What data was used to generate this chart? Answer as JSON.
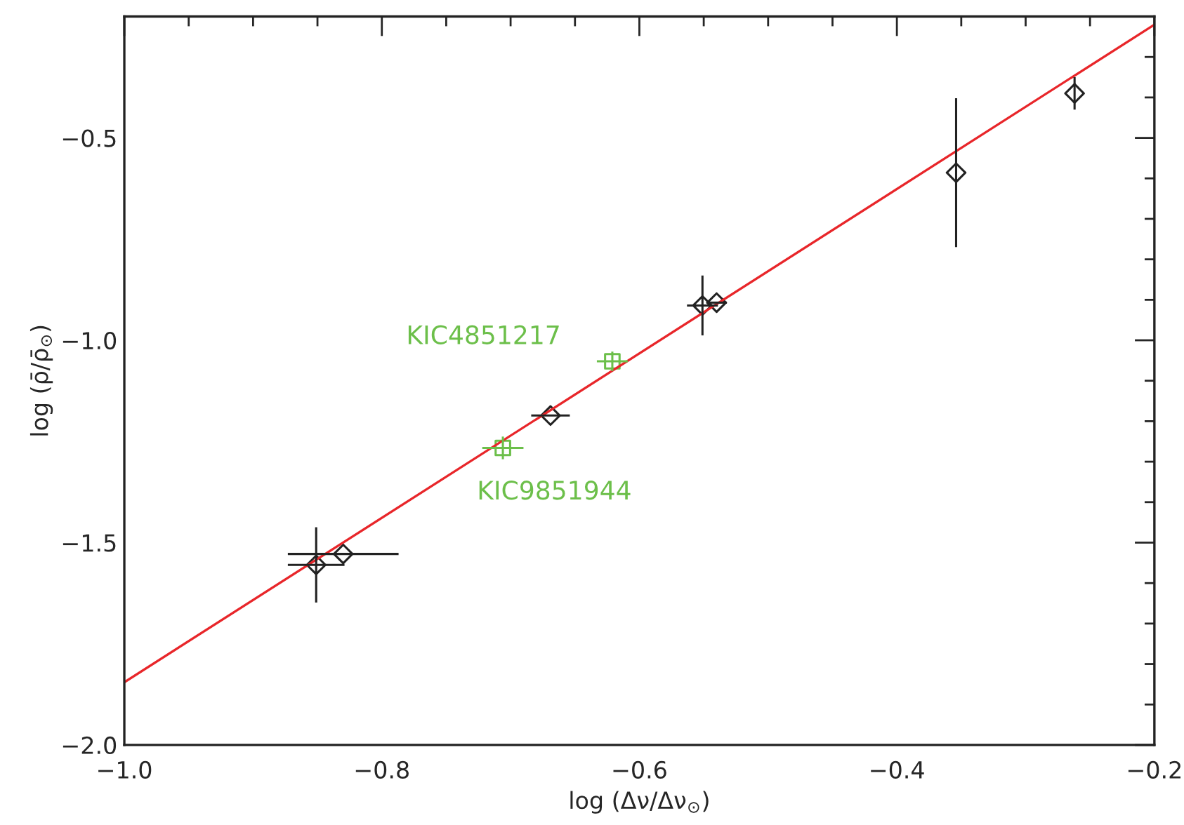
{
  "chart_data": {
    "type": "scatter",
    "xlabel": "log (Δν/Δν$_{⊙}$)",
    "ylabel": "log (ρ̄/ρ̄$_{⊙}$)",
    "xlim": [
      -1.0,
      -0.2
    ],
    "ylim": [
      -2.0,
      -0.2
    ],
    "xticks": [
      {
        "value": -1.0,
        "label": "−1.0"
      },
      {
        "value": -0.95,
        "label": null
      },
      {
        "value": -0.9,
        "label": null
      },
      {
        "value": -0.85,
        "label": null
      },
      {
        "value": -0.8,
        "label": "−0.8"
      },
      {
        "value": -0.75,
        "label": null
      },
      {
        "value": -0.7,
        "label": null
      },
      {
        "value": -0.65,
        "label": null
      },
      {
        "value": -0.6,
        "label": "−0.6"
      },
      {
        "value": -0.55,
        "label": null
      },
      {
        "value": -0.5,
        "label": null
      },
      {
        "value": -0.45,
        "label": null
      },
      {
        "value": -0.4,
        "label": "−0.4"
      },
      {
        "value": -0.35,
        "label": null
      },
      {
        "value": -0.3,
        "label": null
      },
      {
        "value": -0.25,
        "label": null
      },
      {
        "value": -0.2,
        "label": "−0.2"
      }
    ],
    "yticks": [
      {
        "value": -2.0,
        "label": "−2.0"
      },
      {
        "value": -1.9,
        "label": null
      },
      {
        "value": -1.8,
        "label": null
      },
      {
        "value": -1.7,
        "label": null
      },
      {
        "value": -1.6,
        "label": null
      },
      {
        "value": -1.5,
        "label": "−1.5"
      },
      {
        "value": -1.4,
        "label": null
      },
      {
        "value": -1.3,
        "label": null
      },
      {
        "value": -1.2,
        "label": null
      },
      {
        "value": -1.1,
        "label": null
      },
      {
        "value": -1.0,
        "label": "−1.0"
      },
      {
        "value": -0.9,
        "label": null
      },
      {
        "value": -0.8,
        "label": null
      },
      {
        "value": -0.7,
        "label": null
      },
      {
        "value": -0.6,
        "label": null
      },
      {
        "value": -0.5,
        "label": "−0.5"
      },
      {
        "value": -0.4,
        "label": null
      },
      {
        "value": -0.3,
        "label": null
      },
      {
        "value": -0.2,
        "label": null
      }
    ],
    "grid": false,
    "legend": false,
    "series": [
      {
        "type": "line",
        "color": "#e8262a",
        "x": [
          -1.0,
          -0.2
        ],
        "values": [
          -1.845,
          -0.22
        ],
        "marker": "none",
        "line_style": "solid"
      },
      {
        "color": "#222222",
        "marker": "diamond",
        "x": [
          -0.851,
          -0.83,
          -0.669,
          -0.551,
          -0.54,
          -0.354,
          -0.262
        ],
        "values": [
          -1.555,
          -1.528,
          -1.186,
          -0.914,
          -0.907,
          -0.586,
          -0.39
        ],
        "xerrors": [
          0.022,
          0.043,
          0.015,
          0.012,
          0.008,
          null,
          null
        ],
        "errors": [
          0.093,
          null,
          null,
          0.074,
          null,
          0.184,
          0.04
        ]
      },
      {
        "color": "#6cbf4a",
        "marker": "square",
        "x": [
          -0.621,
          -0.706
        ],
        "values": [
          -1.052,
          -1.266
        ],
        "xerrors": [
          0.012,
          0.016
        ],
        "errors": [
          0.024,
          0.028
        ]
      }
    ],
    "annotations": [
      {
        "text": "KIC4851217",
        "x": -0.621,
        "y": -1.052
      },
      {
        "text": "KIC9851944",
        "x": -0.706,
        "y": -1.266
      }
    ]
  }
}
